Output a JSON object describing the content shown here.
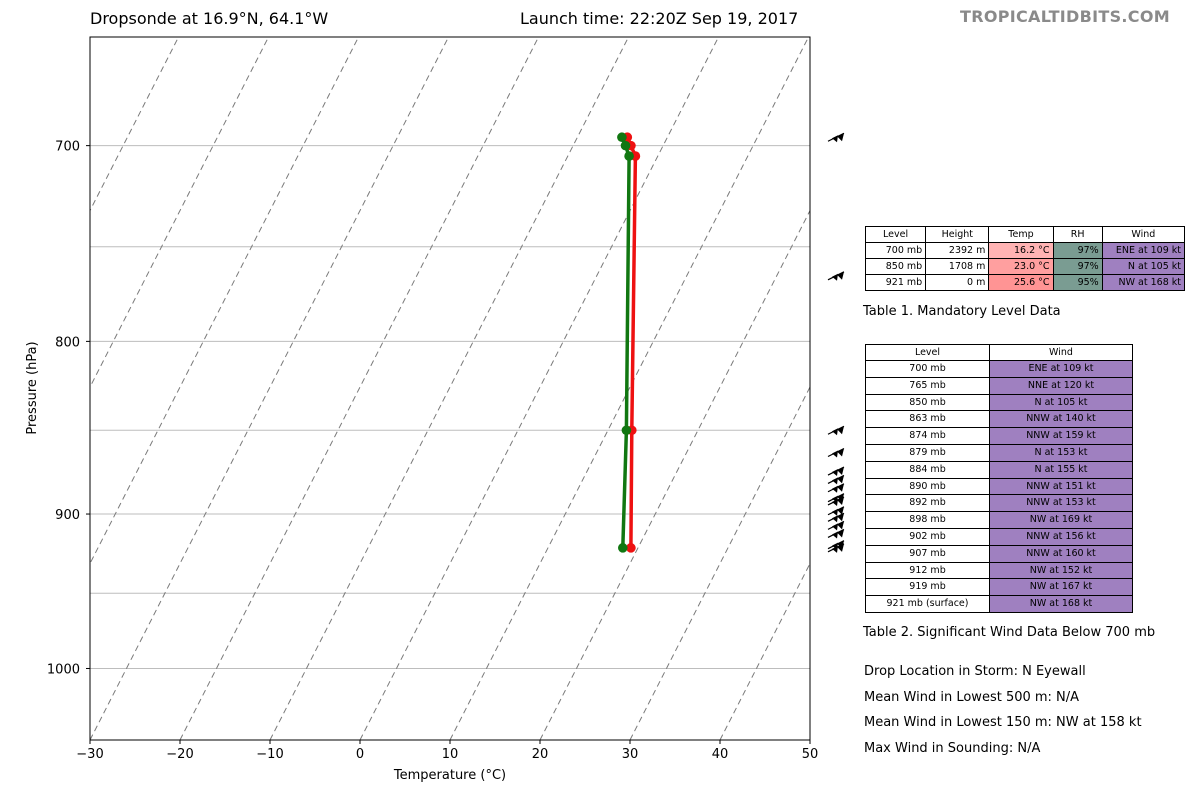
{
  "header": {
    "title_left": "Dropsonde at 16.9°N, 64.1°W",
    "title_right": "Launch time: 22:20Z Sep 19, 2017",
    "brand": "TROPICALTIDBITS.COM"
  },
  "chart_data": {
    "type": "line",
    "xlabel": "Temperature (°C)",
    "ylabel": "Pressure (hPa)",
    "xlim": [
      -30,
      50
    ],
    "x_ticks": [
      "−30",
      "−20",
      "−10",
      "0",
      "10",
      "20",
      "30",
      "40",
      "50"
    ],
    "y_scale": "log",
    "ylim": [
      1050,
      650
    ],
    "y_ticks": [
      "700",
      "800",
      "900",
      "1000"
    ],
    "grid": "horizontal",
    "isobar_lines": [
      700,
      750,
      800,
      850,
      900,
      950,
      1000
    ],
    "skewed_isotherms": "dashed",
    "series": [
      {
        "color": "#ee1111",
        "points": [
          {
            "p": 696,
            "t": 29.7
          },
          {
            "p": 700,
            "t": 30.1
          },
          {
            "p": 705,
            "t": 30.6
          },
          {
            "p": 850,
            "t": 30.2
          },
          {
            "p": 921,
            "t": 30.1
          }
        ]
      },
      {
        "color": "#117711",
        "points": [
          {
            "p": 696,
            "t": 29.1
          },
          {
            "p": 700,
            "t": 29.5
          },
          {
            "p": 705,
            "t": 29.9
          },
          {
            "p": 850,
            "t": 29.6
          },
          {
            "p": 921,
            "t": 29.2
          }
        ]
      }
    ],
    "wind_barbs_pressure": [
      696,
      765,
      850,
      863,
      874,
      879,
      884,
      890,
      892,
      898,
      902,
      907,
      912,
      919,
      921
    ]
  },
  "table1": {
    "headers": [
      "Level",
      "Height",
      "Temp",
      "RH",
      "Wind"
    ],
    "rows": [
      {
        "level": "700 mb",
        "height": "2392 m",
        "temp": "16.2 °C",
        "rh": "97%",
        "wind": "ENE at 109 kt",
        "temp_color": "#ffb3b3"
      },
      {
        "level": "850 mb",
        "height": "1708 m",
        "temp": "23.0 °C",
        "rh": "97%",
        "wind": "N at 105 kt",
        "temp_color": "#ff9f9f"
      },
      {
        "level": "921 mb",
        "height": "0 m",
        "temp": "25.6 °C",
        "rh": "95%",
        "wind": "NW at 168 kt",
        "temp_color": "#ff9494"
      }
    ],
    "rh_color": "#7a9c92",
    "wind_color": "#9f80c0",
    "caption": "Table 1. Mandatory Level Data"
  },
  "table2": {
    "headers": [
      "Level",
      "Wind"
    ],
    "rows": [
      {
        "level": "700 mb",
        "wind": "ENE at 109 kt"
      },
      {
        "level": "765 mb",
        "wind": "NNE at 120 kt"
      },
      {
        "level": "850 mb",
        "wind": "N at 105 kt"
      },
      {
        "level": "863 mb",
        "wind": "NNW at 140 kt"
      },
      {
        "level": "874 mb",
        "wind": "NNW at 159 kt"
      },
      {
        "level": "879 mb",
        "wind": "N at 153 kt"
      },
      {
        "level": "884 mb",
        "wind": "N at 155 kt"
      },
      {
        "level": "890 mb",
        "wind": "NNW at 151 kt"
      },
      {
        "level": "892 mb",
        "wind": "NNW at 153 kt"
      },
      {
        "level": "898 mb",
        "wind": "NW at 169 kt"
      },
      {
        "level": "902 mb",
        "wind": "NNW at 156 kt"
      },
      {
        "level": "907 mb",
        "wind": "NNW at 160 kt"
      },
      {
        "level": "912 mb",
        "wind": "NW at 152 kt"
      },
      {
        "level": "919 mb",
        "wind": "NW at 167 kt"
      },
      {
        "level": "921 mb (surface)",
        "wind": "NW at 168 kt"
      }
    ],
    "caption": "Table 2. Significant Wind Data Below 700 mb"
  },
  "info": {
    "drop_location": "Drop Location in Storm: N Eyewall",
    "mean_500": "Mean Wind in Lowest 500 m:  N/A",
    "mean_150": "Mean Wind in Lowest 150 m:  NW at 158 kt",
    "max_wind": "Max Wind in Sounding:  N/A"
  }
}
